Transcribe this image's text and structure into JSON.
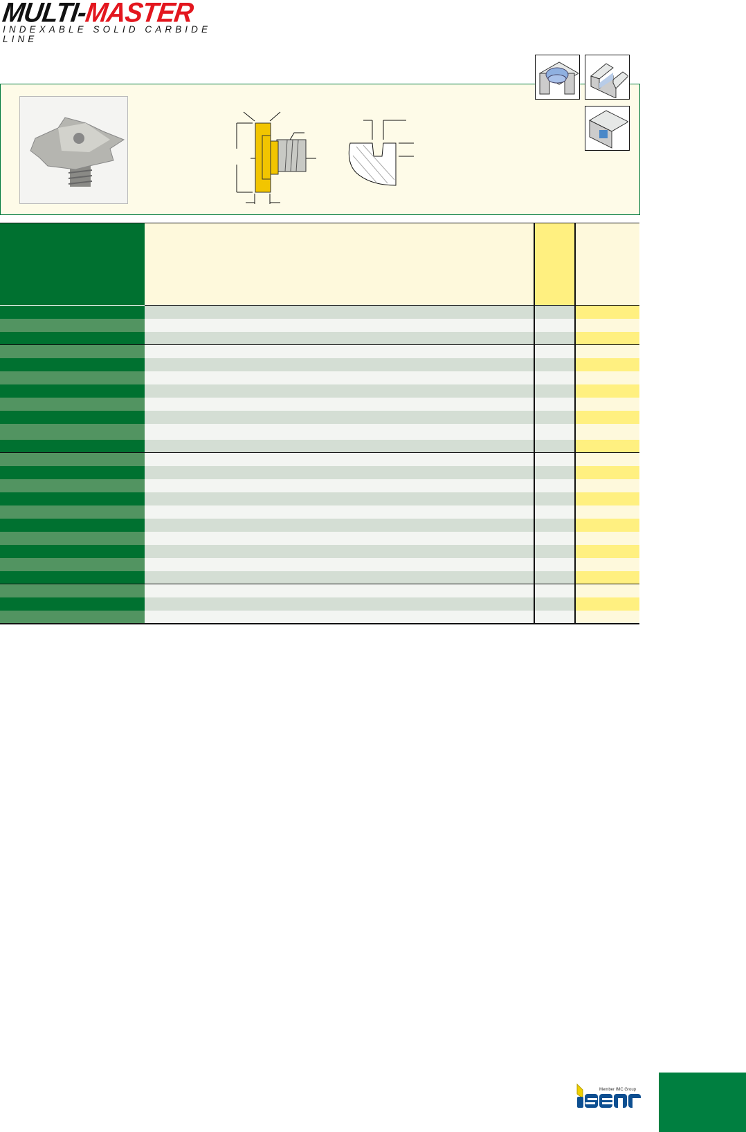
{
  "header": {
    "brand_part1": "MULTI-",
    "brand_part2": "MASTER",
    "tagline": "INDEXABLE SOLID CARBIDE LINE"
  },
  "application_icons": [
    "thread-milling-icon",
    "slot-milling-icon",
    "groove-milling-icon"
  ],
  "table": {
    "row_count": 24,
    "group_breaks_after": [
      3,
      11,
      21
    ]
  },
  "footer": {
    "logo": "ISCAR",
    "logo_tagline": "Member IMC Group"
  },
  "colors": {
    "brand_green": "#007130",
    "row_green_light": "#529461",
    "row_gray_dark": "#d4ded4",
    "row_gray_light": "#f3f5f2",
    "yellow": "#fff080",
    "pale_yellow": "#fef9dc",
    "logo_red": "#e3161e",
    "iscar_blue": "#0d4f91",
    "panel_border": "#007a3d"
  }
}
